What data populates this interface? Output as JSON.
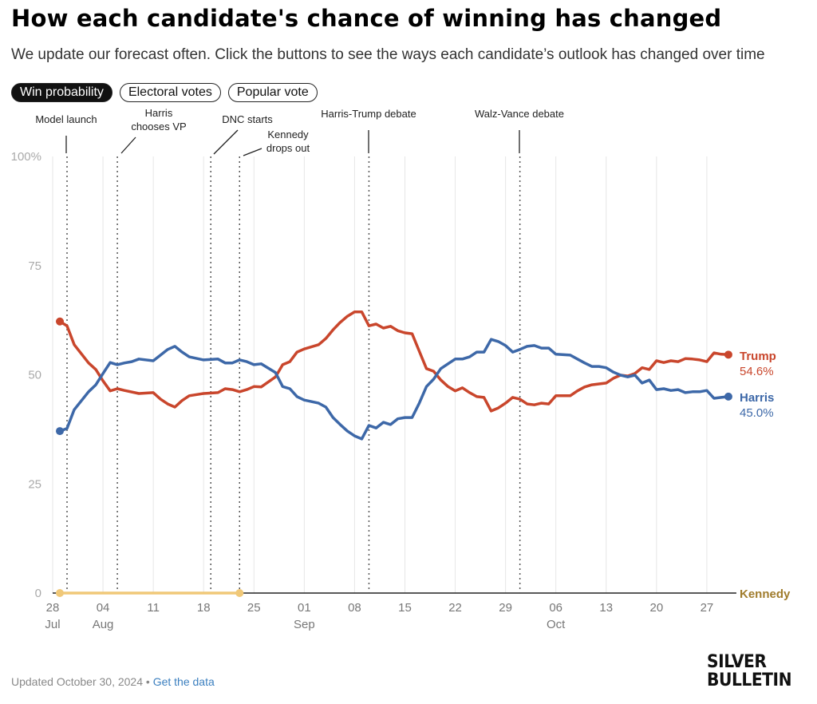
{
  "header": {
    "title": "How each candidate's chance of winning has changed",
    "subtitle": "We update our forecast often. Click the buttons to see the ways each candidate’s outlook has changed over time"
  },
  "buttons": [
    {
      "label": "Win probability",
      "active": true
    },
    {
      "label": "Electoral votes",
      "active": false
    },
    {
      "label": "Popular vote",
      "active": false
    }
  ],
  "footer": {
    "updated": "Updated October 30, 2024",
    "separator": "•",
    "link": "Get the data",
    "logo_line1": "SILVER",
    "logo_line2": "BULLETIN"
  },
  "chart_data": {
    "type": "line",
    "title": "How each candidate's chance of winning has changed",
    "x_unit": "days since Jul 28, 2024",
    "xlim": [
      0,
      94
    ],
    "ylim": [
      0,
      100
    ],
    "ylabel": "",
    "xlabel": "",
    "y_ticks": [
      {
        "value": 100,
        "label": "100%"
      },
      {
        "value": 75,
        "label": "75"
      },
      {
        "value": 50,
        "label": "50"
      },
      {
        "value": 25,
        "label": "25"
      },
      {
        "value": 0,
        "label": "0"
      }
    ],
    "x_ticks": [
      {
        "day": 0,
        "label": "28",
        "month": "Jul"
      },
      {
        "day": 7,
        "label": "04",
        "month": "Aug"
      },
      {
        "day": 14,
        "label": "11",
        "month": ""
      },
      {
        "day": 21,
        "label": "18",
        "month": ""
      },
      {
        "day": 28,
        "label": "25",
        "month": ""
      },
      {
        "day": 35,
        "label": "01",
        "month": "Sep"
      },
      {
        "day": 42,
        "label": "08",
        "month": ""
      },
      {
        "day": 49,
        "label": "15",
        "month": ""
      },
      {
        "day": 56,
        "label": "22",
        "month": ""
      },
      {
        "day": 63,
        "label": "29",
        "month": ""
      },
      {
        "day": 70,
        "label": "06",
        "month": "Oct"
      },
      {
        "day": 77,
        "label": "13",
        "month": ""
      },
      {
        "day": 84,
        "label": "20",
        "month": ""
      },
      {
        "day": 91,
        "label": "27",
        "month": ""
      }
    ],
    "events": [
      {
        "day": 2,
        "lines": [
          "Model launch"
        ]
      },
      {
        "day": 9,
        "lines": [
          "Harris",
          "chooses VP"
        ]
      },
      {
        "day": 22,
        "lines": [
          "DNC starts"
        ]
      },
      {
        "day": 26,
        "lines": [
          "Kennedy",
          "drops out"
        ]
      },
      {
        "day": 44,
        "lines": [
          "Harris-Trump debate"
        ]
      },
      {
        "day": 65,
        "lines": [
          "Walz-Vance debate"
        ]
      }
    ],
    "series": [
      {
        "name": "Trump",
        "color": "#c9462c",
        "final_label": "54.6%",
        "points": [
          [
            1,
            62.2
          ],
          [
            2,
            61.2
          ],
          [
            3,
            56.9
          ],
          [
            5,
            52.7
          ],
          [
            6,
            51.2
          ],
          [
            7,
            48.6
          ],
          [
            8,
            46.3
          ],
          [
            9,
            46.8
          ],
          [
            10,
            46.4
          ],
          [
            12,
            45.7
          ],
          [
            14,
            45.9
          ],
          [
            15,
            44.4
          ],
          [
            16,
            43.3
          ],
          [
            17,
            42.6
          ],
          [
            18,
            44.1
          ],
          [
            19,
            45.2
          ],
          [
            21,
            45.7
          ],
          [
            23,
            45.9
          ],
          [
            24,
            46.8
          ],
          [
            25,
            46.6
          ],
          [
            26,
            46.1
          ],
          [
            27,
            46.6
          ],
          [
            28,
            47.3
          ],
          [
            29,
            47.2
          ],
          [
            31,
            49.5
          ],
          [
            32,
            52.3
          ],
          [
            33,
            53.0
          ],
          [
            34,
            55.2
          ],
          [
            35,
            55.9
          ],
          [
            37,
            56.9
          ],
          [
            38,
            58.3
          ],
          [
            39,
            60.3
          ],
          [
            40,
            62.0
          ],
          [
            41,
            63.4
          ],
          [
            42,
            64.4
          ],
          [
            43,
            64.4
          ],
          [
            44,
            61.2
          ],
          [
            45,
            61.6
          ],
          [
            46,
            60.7
          ],
          [
            47,
            61.1
          ],
          [
            48,
            60.1
          ],
          [
            49,
            59.6
          ],
          [
            50,
            59.4
          ],
          [
            51,
            55.4
          ],
          [
            52,
            51.4
          ],
          [
            53,
            50.8
          ],
          [
            54,
            48.8
          ],
          [
            55,
            47.3
          ],
          [
            56,
            46.3
          ],
          [
            57,
            47.0
          ],
          [
            58,
            45.9
          ],
          [
            59,
            45.0
          ],
          [
            60,
            44.8
          ],
          [
            61,
            41.7
          ],
          [
            62,
            42.4
          ],
          [
            63,
            43.5
          ],
          [
            64,
            44.8
          ],
          [
            65,
            44.4
          ],
          [
            66,
            43.3
          ],
          [
            67,
            43.1
          ],
          [
            68,
            43.5
          ],
          [
            69,
            43.3
          ],
          [
            70,
            45.2
          ],
          [
            72,
            45.2
          ],
          [
            73,
            46.3
          ],
          [
            74,
            47.2
          ],
          [
            75,
            47.7
          ],
          [
            76,
            47.9
          ],
          [
            77,
            48.1
          ],
          [
            78,
            49.2
          ],
          [
            79,
            49.9
          ],
          [
            80,
            49.7
          ],
          [
            81,
            50.3
          ],
          [
            82,
            51.6
          ],
          [
            83,
            51.2
          ],
          [
            84,
            53.2
          ],
          [
            85,
            52.8
          ],
          [
            86,
            53.2
          ],
          [
            87,
            53.0
          ],
          [
            88,
            53.7
          ],
          [
            89,
            53.6
          ],
          [
            90,
            53.4
          ],
          [
            91,
            53.0
          ],
          [
            92,
            55.0
          ],
          [
            93,
            54.7
          ],
          [
            94,
            54.6
          ]
        ]
      },
      {
        "name": "Harris",
        "color": "#3d68a8",
        "final_label": "45.0%",
        "points": [
          [
            1,
            37.1
          ],
          [
            2,
            37.7
          ],
          [
            3,
            42.0
          ],
          [
            5,
            46.1
          ],
          [
            6,
            47.7
          ],
          [
            7,
            50.3
          ],
          [
            8,
            52.8
          ],
          [
            9,
            52.3
          ],
          [
            10,
            52.7
          ],
          [
            11,
            53.0
          ],
          [
            12,
            53.6
          ],
          [
            14,
            53.2
          ],
          [
            15,
            54.5
          ],
          [
            16,
            55.8
          ],
          [
            17,
            56.5
          ],
          [
            18,
            55.2
          ],
          [
            19,
            54.1
          ],
          [
            21,
            53.4
          ],
          [
            23,
            53.6
          ],
          [
            24,
            52.7
          ],
          [
            25,
            52.7
          ],
          [
            26,
            53.4
          ],
          [
            27,
            53.0
          ],
          [
            28,
            52.3
          ],
          [
            29,
            52.5
          ],
          [
            31,
            50.5
          ],
          [
            32,
            47.3
          ],
          [
            33,
            46.8
          ],
          [
            34,
            45.0
          ],
          [
            35,
            44.2
          ],
          [
            37,
            43.5
          ],
          [
            38,
            42.6
          ],
          [
            39,
            40.2
          ],
          [
            40,
            38.6
          ],
          [
            41,
            37.1
          ],
          [
            42,
            36.0
          ],
          [
            43,
            35.3
          ],
          [
            44,
            38.4
          ],
          [
            45,
            37.8
          ],
          [
            46,
            39.1
          ],
          [
            47,
            38.6
          ],
          [
            48,
            39.9
          ],
          [
            49,
            40.2
          ],
          [
            50,
            40.2
          ],
          [
            51,
            43.5
          ],
          [
            52,
            47.3
          ],
          [
            53,
            49.0
          ],
          [
            54,
            51.4
          ],
          [
            55,
            52.5
          ],
          [
            56,
            53.6
          ],
          [
            57,
            53.6
          ],
          [
            58,
            54.1
          ],
          [
            59,
            55.2
          ],
          [
            60,
            55.2
          ],
          [
            61,
            58.1
          ],
          [
            62,
            57.6
          ],
          [
            63,
            56.7
          ],
          [
            64,
            55.2
          ],
          [
            65,
            55.8
          ],
          [
            66,
            56.5
          ],
          [
            67,
            56.7
          ],
          [
            68,
            56.1
          ],
          [
            69,
            56.1
          ],
          [
            70,
            54.7
          ],
          [
            72,
            54.5
          ],
          [
            73,
            53.6
          ],
          [
            74,
            52.7
          ],
          [
            75,
            51.9
          ],
          [
            76,
            51.9
          ],
          [
            77,
            51.6
          ],
          [
            78,
            50.6
          ],
          [
            79,
            49.9
          ],
          [
            80,
            49.5
          ],
          [
            81,
            49.9
          ],
          [
            82,
            48.1
          ],
          [
            83,
            48.8
          ],
          [
            84,
            46.6
          ],
          [
            85,
            46.8
          ],
          [
            86,
            46.4
          ],
          [
            87,
            46.6
          ],
          [
            88,
            45.9
          ],
          [
            89,
            46.1
          ],
          [
            90,
            46.1
          ],
          [
            91,
            46.4
          ],
          [
            92,
            44.6
          ],
          [
            93,
            44.8
          ],
          [
            94,
            45.0
          ]
        ]
      },
      {
        "name": "Kennedy",
        "color": "#f0c878",
        "label_color": "#a07c2c",
        "final_label": "",
        "points": [
          [
            1,
            0
          ],
          [
            26,
            0
          ]
        ]
      }
    ]
  }
}
